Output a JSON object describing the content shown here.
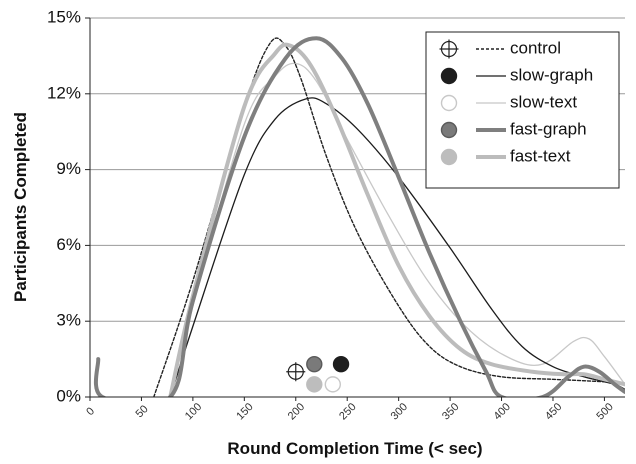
{
  "chart_data": {
    "type": "line",
    "title": "",
    "xlabel": "Round Completion Time (< sec)",
    "ylabel": "Participants Completed",
    "xlim": [
      0,
      520
    ],
    "ylim": [
      0,
      15
    ],
    "y_ticks": [
      {
        "value": 0,
        "label": "0%"
      },
      {
        "value": 3,
        "label": "3%"
      },
      {
        "value": 6,
        "label": "6%"
      },
      {
        "value": 9,
        "label": "9%"
      },
      {
        "value": 12,
        "label": "12%"
      },
      {
        "value": 15,
        "label": "15%"
      }
    ],
    "x_ticks": [
      {
        "value": 0,
        "label": "0"
      },
      {
        "value": 50,
        "label": "50"
      },
      {
        "value": 100,
        "label": "100"
      },
      {
        "value": 150,
        "label": "150"
      },
      {
        "value": 200,
        "label": "200"
      },
      {
        "value": 250,
        "label": "250"
      },
      {
        "value": 300,
        "label": "300"
      },
      {
        "value": 350,
        "label": "350"
      },
      {
        "value": 400,
        "label": "400"
      },
      {
        "value": 450,
        "label": "450"
      },
      {
        "value": 500,
        "label": "500"
      }
    ],
    "grid": "horizontal",
    "legend_position": "top-right",
    "series": [
      {
        "name": "control",
        "color": "#222222",
        "style": "dotted",
        "marker": "crosshair-circle",
        "mean_marker": {
          "x": 200,
          "y": 1.0
        },
        "points": [
          [
            62,
            0
          ],
          [
            100,
            4.6
          ],
          [
            150,
            11.5
          ],
          [
            175,
            14.0
          ],
          [
            190,
            13.9
          ],
          [
            205,
            12.6
          ],
          [
            230,
            9.5
          ],
          [
            260,
            6.5
          ],
          [
            300,
            3.6
          ],
          [
            330,
            2.0
          ],
          [
            360,
            1.2
          ],
          [
            400,
            0.8
          ],
          [
            450,
            0.7
          ],
          [
            500,
            0.6
          ],
          [
            520,
            0.5
          ]
        ]
      },
      {
        "name": "slow-graph",
        "color": "#1c1c1c",
        "style": "solid-thin",
        "marker": "circle-dark",
        "mean_marker": {
          "x": 244,
          "y": 1.3
        },
        "points": [
          [
            78,
            0
          ],
          [
            100,
            2.8
          ],
          [
            150,
            8.8
          ],
          [
            180,
            11.0
          ],
          [
            210,
            11.8
          ],
          [
            230,
            11.6
          ],
          [
            260,
            10.6
          ],
          [
            300,
            8.7
          ],
          [
            350,
            5.9
          ],
          [
            390,
            3.5
          ],
          [
            420,
            2.0
          ],
          [
            450,
            1.2
          ],
          [
            480,
            0.8
          ],
          [
            510,
            0.5
          ],
          [
            520,
            0.3
          ]
        ]
      },
      {
        "name": "slow-text",
        "color": "#c8c8c8",
        "style": "solid-thin",
        "marker": "circle-white",
        "mean_marker": {
          "x": 236,
          "y": 0.5
        },
        "points": [
          [
            78,
            0
          ],
          [
            100,
            3.6
          ],
          [
            150,
            10.8
          ],
          [
            180,
            12.7
          ],
          [
            200,
            13.2
          ],
          [
            220,
            12.5
          ],
          [
            250,
            10.2
          ],
          [
            290,
            7.2
          ],
          [
            330,
            4.5
          ],
          [
            370,
            2.6
          ],
          [
            410,
            1.5
          ],
          [
            440,
            1.3
          ],
          [
            470,
            2.2
          ],
          [
            485,
            2.3
          ],
          [
            500,
            1.6
          ],
          [
            520,
            0.5
          ]
        ]
      },
      {
        "name": "fast-graph",
        "color": "#7f7f7f",
        "style": "solid-thick",
        "marker": "circle-mid",
        "mean_marker": {
          "x": 218,
          "y": 1.3
        },
        "points": [
          [
            8,
            1.5
          ],
          [
            12,
            0
          ],
          [
            78,
            0
          ],
          [
            100,
            3.8
          ],
          [
            150,
            10.3
          ],
          [
            190,
            13.4
          ],
          [
            220,
            14.2
          ],
          [
            245,
            13.4
          ],
          [
            270,
            11.6
          ],
          [
            300,
            8.7
          ],
          [
            330,
            5.7
          ],
          [
            360,
            3.0
          ],
          [
            385,
            1.0
          ],
          [
            400,
            0
          ],
          [
            440,
            0
          ],
          [
            465,
            0.8
          ],
          [
            480,
            1.2
          ],
          [
            495,
            1.0
          ],
          [
            510,
            0.5
          ],
          [
            520,
            0.2
          ]
        ]
      },
      {
        "name": "fast-text",
        "color": "#bcbcbc",
        "style": "solid-thick",
        "marker": "circle-light",
        "mean_marker": {
          "x": 218,
          "y": 0.5
        },
        "points": [
          [
            78,
            0
          ],
          [
            100,
            4.0
          ],
          [
            150,
            11.5
          ],
          [
            180,
            13.6
          ],
          [
            195,
            13.9
          ],
          [
            215,
            13.1
          ],
          [
            240,
            11.0
          ],
          [
            270,
            8.0
          ],
          [
            300,
            5.2
          ],
          [
            330,
            3.2
          ],
          [
            360,
            1.9
          ],
          [
            390,
            1.3
          ],
          [
            430,
            1.0
          ],
          [
            460,
            0.9
          ],
          [
            480,
            0.9
          ],
          [
            500,
            0.7
          ],
          [
            520,
            0.5
          ]
        ]
      }
    ]
  }
}
